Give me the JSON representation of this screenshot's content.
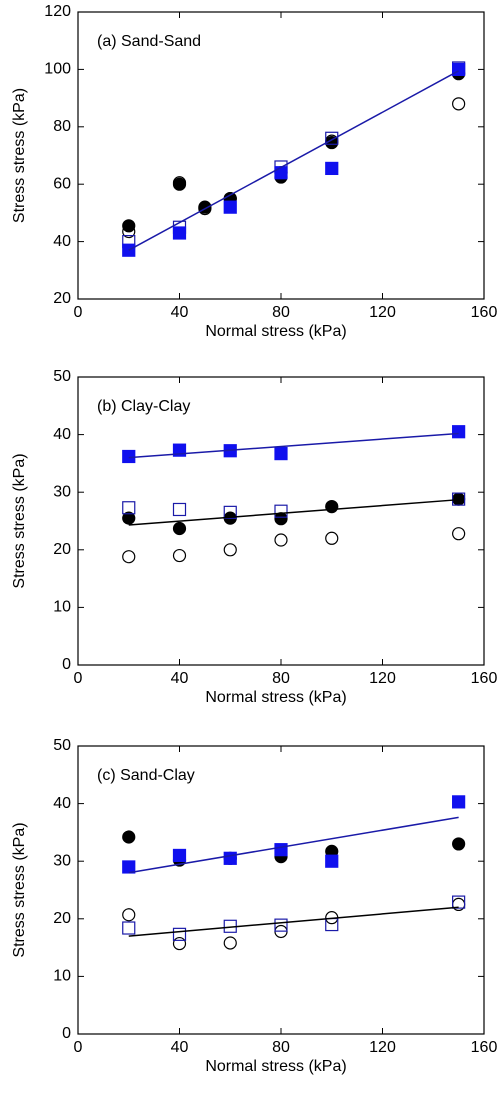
{
  "chart_data": [
    {
      "type": "scatter",
      "annotation": "(a) Sand-Sand",
      "xlabel": "Normal stress (kPa)",
      "ylabel": "Stress stress (kPa)",
      "xlim": [
        0,
        160
      ],
      "xticks": [
        0,
        40,
        80,
        120,
        160
      ],
      "ylim": [
        20,
        120
      ],
      "yticks": [
        20,
        40,
        60,
        80,
        100,
        120
      ],
      "series": [
        {
          "marker": "circle",
          "filled": true,
          "color": "#000000",
          "x": [
            20,
            40,
            50,
            60,
            80,
            100,
            150
          ],
          "values": [
            45.5,
            60,
            52,
            55,
            62.5,
            74.5,
            98.5
          ]
        },
        {
          "marker": "circle",
          "filled": false,
          "color": "#000000",
          "x": [
            20,
            40,
            50,
            60,
            80,
            100,
            150
          ],
          "values": [
            43.5,
            60.5,
            51.5,
            55,
            64,
            75,
            88
          ]
        },
        {
          "marker": "square",
          "filled": false,
          "color": "#1a1aa8",
          "x": [
            20,
            40,
            80,
            100,
            150
          ],
          "values": [
            40,
            45,
            66,
            76,
            100.5
          ]
        },
        {
          "marker": "square",
          "filled": true,
          "color": "#1010ee",
          "x": [
            20,
            40,
            60,
            80,
            100,
            150
          ],
          "values": [
            37,
            43,
            52,
            64,
            65.5,
            100
          ]
        },
        {
          "type": "line",
          "color": "#1a1aa8",
          "x": [
            20,
            150
          ],
          "values": [
            37,
            99.5
          ]
        }
      ]
    },
    {
      "type": "scatter",
      "annotation": "(b) Clay-Clay",
      "xlabel": "Normal stress (kPa)",
      "ylabel": "Stress stress (kPa)",
      "xlim": [
        0,
        160
      ],
      "xticks": [
        0,
        40,
        80,
        120,
        160
      ],
      "ylim": [
        0,
        50
      ],
      "yticks": [
        0,
        10,
        20,
        30,
        40,
        50
      ],
      "series": [
        {
          "marker": "circle",
          "filled": true,
          "color": "#000000",
          "x": [
            20,
            40,
            60,
            80,
            100,
            150
          ],
          "values": [
            25.5,
            23.7,
            25.5,
            25.4,
            27.5,
            28.8
          ]
        },
        {
          "marker": "circle",
          "filled": false,
          "color": "#000000",
          "x": [
            20,
            40,
            60,
            80,
            100,
            150
          ],
          "values": [
            18.8,
            19,
            20,
            21.7,
            22,
            22.8
          ]
        },
        {
          "marker": "square",
          "filled": false,
          "color": "#1a1aa8",
          "x": [
            20,
            40,
            60,
            80,
            150
          ],
          "values": [
            27.3,
            27,
            26.5,
            26.7,
            28.8
          ]
        },
        {
          "marker": "square",
          "filled": true,
          "color": "#1010ee",
          "x": [
            20,
            40,
            60,
            80,
            150
          ],
          "values": [
            36.2,
            37.3,
            37.2,
            36.7,
            40.5
          ]
        },
        {
          "type": "line",
          "color": "#1a1aa8",
          "x": [
            20,
            150
          ],
          "values": [
            36,
            40.2
          ]
        },
        {
          "type": "line",
          "color": "#000000",
          "x": [
            20,
            150
          ],
          "values": [
            24.3,
            28.7
          ]
        }
      ]
    },
    {
      "type": "scatter",
      "annotation": "(c) Sand-Clay",
      "xlabel": "Normal stress (kPa)",
      "ylabel": "Stress stress (kPa)",
      "xlim": [
        0,
        160
      ],
      "xticks": [
        0,
        40,
        80,
        120,
        160
      ],
      "ylim": [
        0,
        50
      ],
      "yticks": [
        0,
        10,
        20,
        30,
        40,
        50
      ],
      "series": [
        {
          "marker": "circle",
          "filled": true,
          "color": "#000000",
          "x": [
            20,
            40,
            60,
            80,
            100,
            150
          ],
          "values": [
            34.2,
            30.2,
            30.5,
            30.8,
            31.7,
            33
          ]
        },
        {
          "marker": "circle",
          "filled": false,
          "color": "#000000",
          "x": [
            20,
            40,
            60,
            80,
            100,
            150
          ],
          "values": [
            20.7,
            15.7,
            15.8,
            17.8,
            20.2,
            22.5
          ]
        },
        {
          "marker": "square",
          "filled": false,
          "color": "#1a1aa8",
          "x": [
            20,
            40,
            60,
            80,
            100,
            150
          ],
          "values": [
            18.4,
            17.3,
            18.7,
            18.9,
            19,
            22.9
          ]
        },
        {
          "marker": "square",
          "filled": true,
          "color": "#1010ee",
          "x": [
            20,
            40,
            60,
            80,
            100,
            150
          ],
          "values": [
            29,
            31,
            30.5,
            32,
            30,
            40.3
          ]
        },
        {
          "type": "line",
          "color": "#1a1aa8",
          "x": [
            20,
            150
          ],
          "values": [
            28,
            37.6
          ]
        },
        {
          "type": "line",
          "color": "#000000",
          "x": [
            20,
            150
          ],
          "values": [
            17,
            22
          ]
        }
      ]
    }
  ]
}
